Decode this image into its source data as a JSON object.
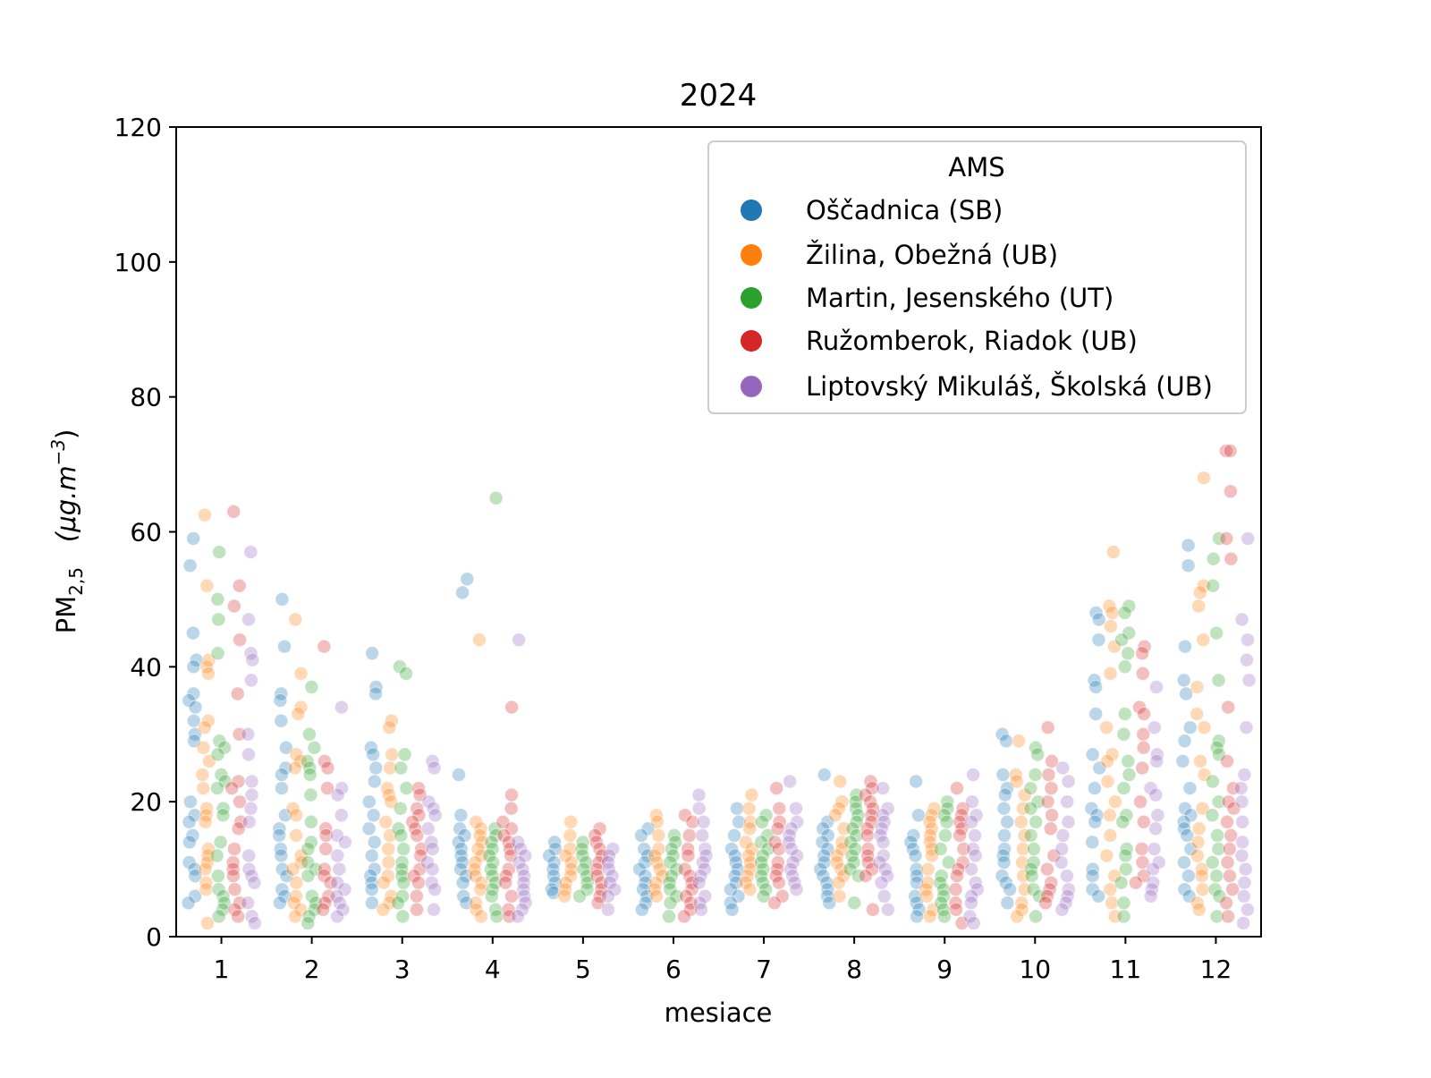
{
  "chart_data": {
    "type": "scatter",
    "subtype": "strip",
    "title": "2024",
    "xlabel": "mesiace",
    "ylabel": {
      "main": "PM",
      "sub": "2,5",
      "unit_prefix": "(μg.m",
      "unit_sup": "−3",
      "unit_suffix": ")"
    },
    "ylim": [
      0,
      120
    ],
    "yticks": [
      0,
      20,
      40,
      60,
      80,
      100,
      120
    ],
    "categories": [
      "1",
      "2",
      "3",
      "4",
      "5",
      "6",
      "7",
      "8",
      "9",
      "10",
      "11",
      "12"
    ],
    "grid": false,
    "marker_alpha": 0.3,
    "legend": {
      "title": "AMS",
      "placement": "top-right"
    },
    "series": [
      {
        "name": "Oščadnica (SB)",
        "color": "#1f77b4",
        "values": [
          [
            59,
            55,
            45,
            41,
            40,
            36,
            35,
            34,
            32,
            30,
            29,
            20,
            18,
            17,
            15,
            14,
            11,
            10,
            9,
            6,
            5
          ],
          [
            50,
            43,
            36,
            35,
            32,
            28,
            25,
            24,
            22,
            18,
            16,
            15,
            13,
            12,
            10,
            9,
            7,
            6,
            5
          ],
          [
            42,
            37,
            36,
            28,
            27,
            25,
            23,
            20,
            18,
            16,
            14,
            12,
            10,
            9,
            8,
            7,
            5
          ],
          [
            53,
            51,
            24,
            18,
            16,
            15,
            14,
            13,
            12,
            11,
            10,
            9,
            8,
            6,
            5
          ],
          [
            14,
            13,
            12,
            11,
            10,
            9,
            8,
            7,
            6.5
          ],
          [
            16,
            15,
            13,
            12,
            11,
            10,
            9,
            8,
            7,
            6,
            5,
            4
          ],
          [
            19,
            17,
            15,
            13,
            12,
            11,
            10,
            9,
            8,
            7,
            6,
            5,
            4
          ],
          [
            24,
            17,
            16,
            15,
            14,
            13,
            12,
            11,
            10,
            9,
            8,
            7,
            6,
            5
          ],
          [
            23,
            18,
            15,
            14,
            13,
            12,
            10,
            9,
            8,
            6,
            5,
            4,
            3
          ],
          [
            30,
            29,
            24,
            22,
            21,
            19,
            17,
            15,
            13,
            12,
            11,
            9,
            8,
            7,
            5
          ],
          [
            48,
            47,
            44,
            38,
            37,
            33,
            27,
            25,
            22,
            19,
            18,
            17,
            14,
            10,
            9,
            7,
            6
          ],
          [
            58,
            55,
            43,
            38,
            36,
            31,
            29,
            26,
            22,
            19,
            18,
            17,
            16,
            15,
            13,
            11,
            9,
            7,
            6
          ]
        ]
      },
      {
        "name": "Žilina, Obežná (UB)",
        "color": "#ff7f0e",
        "values": [
          [
            62.5,
            52,
            41,
            40,
            39,
            32,
            31,
            28,
            26,
            24,
            22,
            19,
            18,
            17,
            13,
            12,
            11,
            10,
            8,
            7,
            2
          ],
          [
            47,
            39,
            34,
            33,
            27,
            26,
            25,
            19,
            18,
            15,
            12,
            11,
            10,
            8,
            6,
            5,
            4,
            3
          ],
          [
            32,
            31,
            27,
            25,
            22,
            21,
            20,
            17,
            15,
            13,
            11,
            9,
            8,
            6,
            5,
            4
          ],
          [
            44,
            17,
            16,
            15,
            14,
            13,
            12,
            11,
            10,
            9,
            8,
            7,
            5,
            4,
            3
          ],
          [
            17,
            15,
            13,
            12,
            11,
            10,
            9,
            8,
            7,
            6
          ],
          [
            18,
            17,
            15,
            13,
            12,
            11,
            10,
            9,
            8,
            7,
            6
          ],
          [
            21,
            19,
            17,
            16,
            14,
            13,
            12,
            11,
            10,
            9,
            8,
            7
          ],
          [
            23,
            20,
            19,
            18,
            16,
            14,
            13,
            12,
            11,
            10,
            9,
            8,
            6
          ],
          [
            19,
            18,
            17,
            16,
            15,
            14,
            13,
            12,
            10,
            8,
            7,
            6,
            4,
            3
          ],
          [
            29,
            24,
            23,
            21,
            19,
            17,
            15,
            13,
            11,
            9,
            7,
            5,
            4,
            3
          ],
          [
            57,
            49,
            48,
            46,
            43,
            39,
            31,
            27,
            26,
            23,
            20,
            18,
            15,
            12,
            9,
            7,
            5,
            3
          ],
          [
            68,
            52,
            51,
            49,
            44,
            37,
            33,
            31,
            26,
            24,
            19,
            16,
            14,
            12,
            10,
            9,
            7,
            5,
            4
          ]
        ]
      },
      {
        "name": "Martin, Jesenského (UT)",
        "color": "#2ca02c",
        "values": [
          [
            57,
            50,
            47,
            42,
            29,
            28,
            27,
            24,
            23,
            22,
            19,
            18,
            14,
            12,
            9,
            7,
            6,
            5,
            4,
            3
          ],
          [
            37,
            30,
            28,
            26,
            25,
            24,
            21,
            17,
            14,
            13,
            11,
            10,
            9,
            6,
            5,
            4,
            3,
            2
          ],
          [
            40,
            39,
            27,
            25,
            22,
            19,
            16,
            15,
            13,
            11,
            10,
            9,
            8,
            6,
            5,
            3
          ],
          [
            65,
            16,
            15,
            14,
            13,
            12,
            11,
            10,
            9,
            8,
            7,
            6,
            4,
            3
          ],
          [
            14,
            13,
            12,
            11,
            10,
            9,
            8,
            7,
            6
          ],
          [
            15,
            14,
            13,
            12,
            11,
            10,
            9,
            8,
            7,
            6,
            5,
            3
          ],
          [
            18,
            17,
            15,
            14,
            13,
            12,
            11,
            10,
            9,
            8,
            7,
            6
          ],
          [
            21,
            20,
            19,
            18,
            17,
            16,
            15,
            14,
            13,
            12,
            11,
            10,
            9,
            5
          ],
          [
            20,
            19,
            18,
            17,
            15,
            13,
            11,
            9,
            8,
            7,
            6,
            5,
            4,
            3
          ],
          [
            28,
            27,
            24,
            22,
            20,
            19,
            17,
            15,
            13,
            11,
            10,
            9,
            7,
            6,
            3
          ],
          [
            49,
            48,
            45,
            44,
            42,
            40,
            33,
            30,
            26,
            24,
            22,
            18,
            17,
            13,
            12,
            10,
            8,
            5,
            3
          ],
          [
            59,
            56,
            52,
            45,
            38,
            29,
            28,
            27,
            23,
            20,
            18,
            15,
            13,
            11,
            9,
            7,
            6,
            3
          ]
        ]
      },
      {
        "name": "Ružomberok, Riadok (UB)",
        "color": "#d62728",
        "values": [
          [
            63,
            52,
            49,
            44,
            36,
            30,
            23,
            22,
            20,
            17,
            16,
            13,
            11,
            10,
            9,
            7,
            5,
            4,
            3
          ],
          [
            43,
            26,
            25,
            22,
            16,
            15,
            13,
            10,
            9,
            8,
            6,
            5,
            4
          ],
          [
            22,
            21,
            19,
            18,
            17,
            16,
            15,
            13,
            12,
            10,
            9,
            8,
            6,
            4
          ],
          [
            34,
            21,
            19,
            17,
            16,
            15,
            14,
            13,
            12,
            10,
            9,
            8,
            6,
            4,
            3
          ],
          [
            16,
            15,
            14,
            13,
            12,
            11,
            10,
            9,
            8,
            7,
            6,
            5
          ],
          [
            18,
            17,
            15,
            13,
            12,
            10,
            9,
            8,
            7,
            6,
            5,
            4,
            3
          ],
          [
            22,
            19,
            17,
            16,
            14,
            13,
            11,
            10,
            9,
            8,
            6,
            5
          ],
          [
            23,
            22,
            21,
            20,
            19,
            18,
            17,
            16,
            15,
            13,
            12,
            11,
            10,
            9,
            4
          ],
          [
            22,
            19,
            18,
            17,
            16,
            15,
            13,
            11,
            10,
            9,
            7,
            5,
            4,
            2
          ],
          [
            31,
            26,
            24,
            22,
            20,
            18,
            16,
            12,
            10,
            8,
            7,
            6,
            5
          ],
          [
            43,
            42,
            39,
            34,
            33,
            30,
            28,
            25,
            20,
            17,
            13,
            11,
            9,
            8
          ],
          [
            72,
            72,
            66,
            59,
            56,
            34,
            26,
            22,
            20,
            19,
            17,
            15,
            13,
            11,
            9,
            7,
            5,
            3
          ]
        ]
      },
      {
        "name": "Liptovský Mikuláš, Školská (UB)",
        "color": "#9467bd",
        "values": [
          [
            57,
            47,
            42,
            41,
            38,
            30,
            27,
            23,
            21,
            19,
            17,
            12,
            10,
            9,
            8,
            5,
            3,
            2
          ],
          [
            34,
            22,
            21,
            18,
            15,
            14,
            12,
            10,
            8,
            7,
            6,
            5,
            4,
            3
          ],
          [
            26,
            25,
            20,
            19,
            18,
            16,
            14,
            13,
            11,
            10,
            8,
            7,
            4
          ],
          [
            44,
            14,
            13,
            12,
            11,
            10,
            9,
            8,
            7,
            6,
            5,
            4,
            3
          ],
          [
            13,
            12,
            11,
            10,
            9,
            8,
            7,
            6,
            4
          ],
          [
            21,
            19,
            17,
            15,
            13,
            12,
            11,
            10,
            9,
            8,
            6,
            5,
            4
          ],
          [
            23,
            19,
            17,
            16,
            15,
            14,
            13,
            12,
            11,
            10,
            9,
            8,
            7
          ],
          [
            22,
            19,
            18,
            17,
            16,
            15,
            14,
            12,
            11,
            10,
            9,
            8,
            6,
            4
          ],
          [
            24,
            20,
            18,
            17,
            15,
            13,
            12,
            10,
            8,
            7,
            6,
            5,
            3,
            2
          ],
          [
            25,
            23,
            20,
            17,
            15,
            13,
            11,
            9,
            7,
            6,
            5,
            4
          ],
          [
            37,
            31,
            27,
            26,
            22,
            21,
            18,
            16,
            13,
            11,
            10,
            8,
            7,
            6
          ],
          [
            59,
            47,
            44,
            41,
            38,
            31,
            24,
            22,
            20,
            17,
            14,
            12,
            10,
            8,
            6,
            4,
            2
          ]
        ]
      }
    ]
  }
}
